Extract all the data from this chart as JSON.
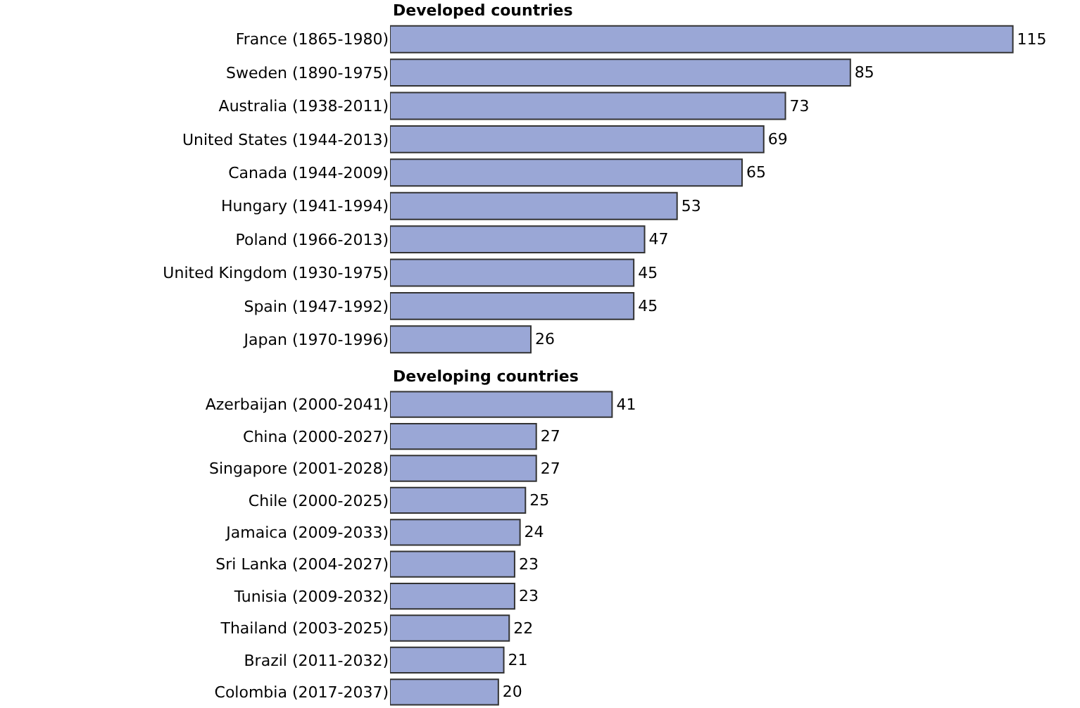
{
  "chart_data": [
    {
      "type": "bar",
      "orientation": "horizontal",
      "title": "Developed countries",
      "categories": [
        "France (1865-1980)",
        "Sweden (1890-1975)",
        "Australia (1938-2011)",
        "United States (1944-2013)",
        "Canada (1944-2009)",
        "Hungary (1941-1994)",
        "Poland (1966-2013)",
        "United Kingdom (1930-1975)",
        "Spain (1947-1992)",
        "Japan (1970-1996)"
      ],
      "values": [
        115,
        85,
        73,
        69,
        65,
        53,
        47,
        45,
        45,
        26
      ],
      "color": "#9aa7d6",
      "data_labels": true
    },
    {
      "type": "bar",
      "orientation": "horizontal",
      "title": "Developing countries",
      "categories": [
        "Azerbaijan (2000-2041)",
        "China (2000-2027)",
        "Singapore (2001-2028)",
        "Chile (2000-2025)",
        "Jamaica (2009-2033)",
        "Sri Lanka (2004-2027)",
        "Tunisia (2009-2032)",
        "Thailand (2003-2025)",
        "Brazil (2011-2032)",
        "Colombia (2017-2037)"
      ],
      "values": [
        41,
        27,
        27,
        25,
        24,
        23,
        23,
        22,
        21,
        20
      ],
      "color": "#9aa7d6",
      "data_labels": true
    }
  ]
}
